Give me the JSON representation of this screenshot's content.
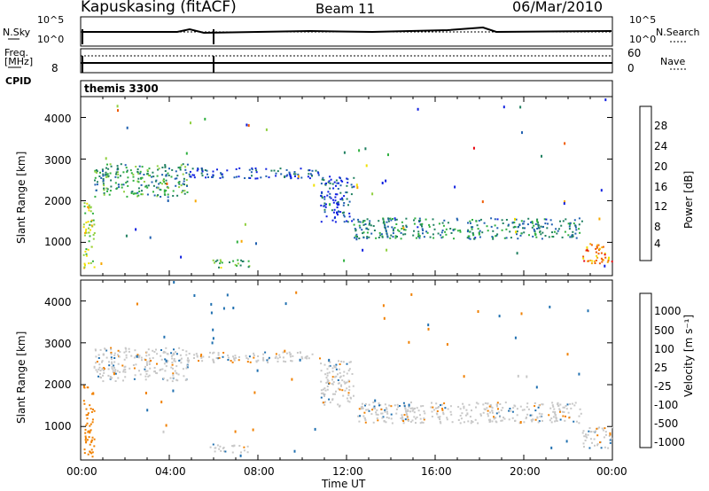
{
  "header": {
    "station": "Kapuskasing (fitACF)",
    "beam": "Beam 11",
    "date": "06/Mar/2010"
  },
  "top_panels": {
    "nsky_label": "N.Sky",
    "nsky_ticks": [
      "10^5",
      "10^0"
    ],
    "nsearch_label": "N.Search",
    "nsearch_ticks": [
      "10^5",
      "10^0"
    ],
    "freq_label_1": "Freq.",
    "freq_label_2": "[MHz]",
    "freq_ticks": [
      "8"
    ],
    "nave_label": "Nave",
    "nave_ticks": [
      "60",
      "0"
    ],
    "cpid_label": "CPID",
    "cpid_value": "themis 3300"
  },
  "axes": {
    "ylabel": "Slant Range [km]",
    "yticks": [
      "4000",
      "3000",
      "2000",
      "1000"
    ],
    "xlabel": "Time UT",
    "xticks": [
      "00:00",
      "04:00",
      "08:00",
      "12:00",
      "16:00",
      "20:00",
      "00:00"
    ]
  },
  "power_colorbar": {
    "label": "Power [dB]",
    "ticks": [
      "28",
      "24",
      "20",
      "16",
      "12",
      "8",
      "4"
    ],
    "colors": [
      "#e8000b",
      "#f05a00",
      "#f8a800",
      "#f0e000",
      "#90d040",
      "#30b040",
      "#208060",
      "#2060b0",
      "#1020e0"
    ]
  },
  "velocity_colorbar": {
    "label": "Velocity [m s⁻¹]",
    "ticks": [
      "1000",
      "500",
      "100",
      "25",
      "-25",
      "-100",
      "-500",
      "-1000"
    ],
    "colors": [
      "#1030c0",
      "#2070b0",
      "#208050",
      "#50c030",
      "#c8c8c8",
      "#f8d000",
      "#f08000",
      "#f04000",
      "#e00000"
    ]
  },
  "chart_data": [
    {
      "type": "heatmap",
      "title": "Power",
      "xlabel": "Time UT",
      "ylabel": "Slant Range [km]",
      "xlim": [
        0,
        24
      ],
      "ylim": [
        200,
        4500
      ],
      "colorbar_label": "Power [dB]",
      "features": [
        {
          "t0": 0.1,
          "t1": 0.6,
          "r0": 300,
          "r1": 2000,
          "val": 18
        },
        {
          "t0": 0.6,
          "t1": 4.8,
          "r0": 2100,
          "r1": 2900,
          "val": 12
        },
        {
          "t0": 4.8,
          "t1": 10.8,
          "r0": 2550,
          "r1": 2800,
          "val": 6
        },
        {
          "t0": 5.8,
          "t1": 7.6,
          "r0": 400,
          "r1": 600,
          "val": 14
        },
        {
          "t0": 10.8,
          "t1": 12.3,
          "r0": 1500,
          "r1": 2600,
          "val": 6
        },
        {
          "t0": 12.3,
          "t1": 22.6,
          "r0": 1100,
          "r1": 1600,
          "val": 10
        },
        {
          "t0": 22.6,
          "t1": 24,
          "r0": 500,
          "r1": 1000,
          "val": 24
        }
      ]
    },
    {
      "type": "heatmap",
      "title": "Velocity",
      "xlabel": "Time UT",
      "ylabel": "Slant Range [km]",
      "xlim": [
        0,
        24
      ],
      "ylim": [
        200,
        4500
      ],
      "colorbar_label": "Velocity [m s⁻¹]",
      "features": [
        {
          "t0": 0.1,
          "t1": 0.6,
          "r0": 300,
          "r1": 2000,
          "val": -100
        },
        {
          "t0": 0.6,
          "t1": 4.8,
          "r0": 2100,
          "r1": 2900,
          "val": 0
        },
        {
          "t0": 4.8,
          "t1": 10.8,
          "r0": 2550,
          "r1": 2800,
          "val": 0
        },
        {
          "t0": 5.8,
          "t1": 7.6,
          "r0": 400,
          "r1": 600,
          "val": 0
        },
        {
          "t0": 10.8,
          "t1": 12.3,
          "r0": 1500,
          "r1": 2600,
          "val": 0
        },
        {
          "t0": 12.3,
          "t1": 22.6,
          "r0": 1100,
          "r1": 1600,
          "val": 0
        },
        {
          "t0": 22.6,
          "t1": 24,
          "r0": 500,
          "r1": 1000,
          "val": 0
        }
      ]
    }
  ]
}
